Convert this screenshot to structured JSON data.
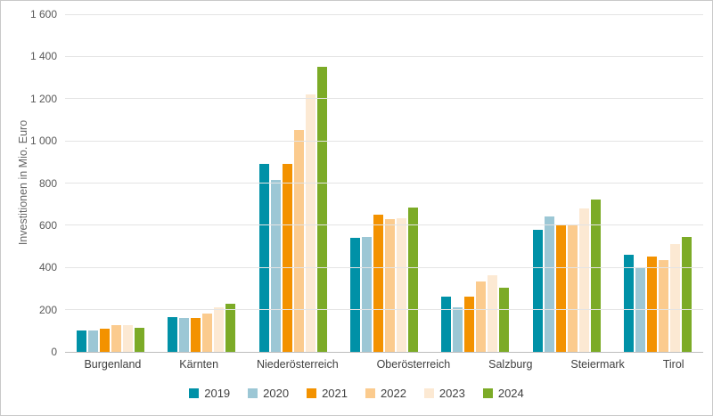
{
  "chart_data": {
    "type": "bar",
    "title": "",
    "ylabel": "Investitionen in Mio. Euro",
    "xlabel": "",
    "ylim": [
      0,
      1600
    ],
    "ytick_step": 200,
    "grid": true,
    "legend_position": "bottom",
    "categories": [
      "Burgenland",
      "Kärnten",
      "Niederösterreich",
      "Oberösterreich",
      "Salzburg",
      "Steiermark",
      "Tirol"
    ],
    "series": [
      {
        "name": "2019",
        "color": "#0091a7",
        "values": [
          100,
          165,
          890,
          540,
          260,
          580,
          460
        ]
      },
      {
        "name": "2020",
        "color": "#9cc7d5",
        "values": [
          100,
          160,
          815,
          545,
          210,
          640,
          400
        ]
      },
      {
        "name": "2021",
        "color": "#f39200",
        "values": [
          110,
          160,
          890,
          650,
          260,
          600,
          450
        ]
      },
      {
        "name": "2022",
        "color": "#fbcb8e",
        "values": [
          125,
          180,
          1050,
          630,
          335,
          600,
          435
        ]
      },
      {
        "name": "2023",
        "color": "#fce9d3",
        "values": [
          125,
          210,
          1220,
          635,
          365,
          680,
          510
        ]
      },
      {
        "name": "2024",
        "color": "#7cab27",
        "values": [
          115,
          230,
          1350,
          685,
          305,
          720,
          545
        ]
      }
    ]
  }
}
